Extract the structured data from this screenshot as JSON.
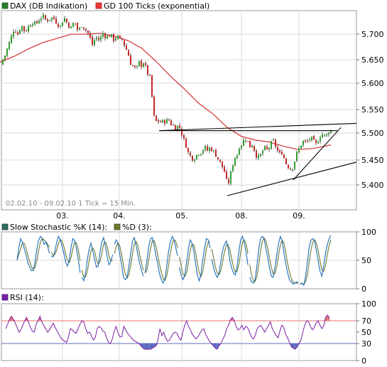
{
  "chart_data": [
    {
      "type": "candlestick",
      "legend": [
        {
          "label": "DAX (DB Indikation)",
          "color": "#2e7d32"
        },
        {
          "label": "GD 100 Ticks (exponential)",
          "color": "#d32f2f"
        }
      ],
      "info_text": "02.02.10 - 09.02.10   1 Tick = 15 Min.",
      "x_ticks": [
        "03.",
        "04.",
        "05.",
        "08.",
        "09."
      ],
      "y_ticks": [
        "5.700",
        "5.650",
        "5.600",
        "5.550",
        "5.500",
        "5.450",
        "5.400"
      ],
      "ylim": [
        5365,
        5745
      ],
      "close_path": [
        [
          0,
          5642
        ],
        [
          7,
          5660
        ],
        [
          14,
          5687
        ],
        [
          20,
          5712
        ],
        [
          25,
          5700
        ],
        [
          30,
          5718
        ],
        [
          35,
          5705
        ],
        [
          40,
          5714
        ],
        [
          45,
          5725
        ],
        [
          50,
          5718
        ],
        [
          55,
          5728
        ],
        [
          60,
          5735
        ],
        [
          65,
          5726
        ],
        [
          70,
          5730
        ],
        [
          75,
          5732
        ],
        [
          80,
          5722
        ],
        [
          85,
          5715
        ],
        [
          90,
          5733
        ],
        [
          95,
          5720
        ],
        [
          100,
          5712
        ],
        [
          105,
          5725
        ],
        [
          110,
          5705
        ],
        [
          115,
          5718
        ],
        [
          120,
          5710
        ],
        [
          125,
          5700
        ],
        [
          130,
          5680
        ],
        [
          135,
          5695
        ],
        [
          140,
          5688
        ],
        [
          145,
          5702
        ],
        [
          150,
          5694
        ],
        [
          155,
          5699
        ],
        [
          160,
          5690
        ],
        [
          165,
          5697
        ],
        [
          168,
          5688
        ],
        [
          172,
          5690
        ],
        [
          176,
          5677
        ],
        [
          180,
          5665
        ],
        [
          184,
          5645
        ],
        [
          188,
          5638
        ],
        [
          192,
          5632
        ],
        [
          196,
          5646
        ],
        [
          200,
          5640
        ],
        [
          203,
          5650
        ],
        [
          206,
          5630
        ],
        [
          208,
          5625
        ],
        [
          211,
          5617
        ],
        [
          214,
          5580
        ],
        [
          216,
          5552
        ],
        [
          218,
          5532
        ],
        [
          222,
          5535
        ],
        [
          227,
          5532
        ],
        [
          232,
          5534
        ],
        [
          238,
          5536
        ],
        [
          242,
          5527
        ],
        [
          247,
          5522
        ],
        [
          252,
          5526
        ],
        [
          256,
          5510
        ],
        [
          259,
          5498
        ],
        [
          262,
          5488
        ],
        [
          264,
          5476
        ],
        [
          268,
          5468
        ],
        [
          272,
          5462
        ],
        [
          276,
          5468
        ],
        [
          280,
          5474
        ],
        [
          284,
          5476
        ],
        [
          288,
          5485
        ],
        [
          292,
          5478
        ],
        [
          296,
          5484
        ],
        [
          300,
          5478
        ],
        [
          304,
          5470
        ],
        [
          308,
          5460
        ],
        [
          312,
          5450
        ],
        [
          316,
          5438
        ],
        [
          320,
          5413
        ],
        [
          323,
          5420
        ],
        [
          326,
          5442
        ],
        [
          329,
          5458
        ],
        [
          331,
          5466
        ],
        [
          334,
          5470
        ],
        [
          337,
          5486
        ],
        [
          340,
          5490
        ],
        [
          343,
          5497
        ],
        [
          346,
          5501
        ],
        [
          349,
          5494
        ],
        [
          352,
          5486
        ],
        [
          355,
          5490
        ],
        [
          358,
          5480
        ],
        [
          361,
          5469
        ],
        [
          365,
          5463
        ],
        [
          369,
          5476
        ],
        [
          373,
          5482
        ],
        [
          377,
          5478
        ],
        [
          381,
          5490
        ],
        [
          385,
          5495
        ],
        [
          389,
          5484
        ],
        [
          393,
          5470
        ],
        [
          397,
          5475
        ],
        [
          401,
          5460
        ],
        [
          404,
          5450
        ],
        [
          407,
          5447
        ],
        [
          410,
          5441
        ],
        [
          413,
          5450
        ],
        [
          416,
          5463
        ],
        [
          419,
          5477
        ],
        [
          422,
          5483
        ],
        [
          425,
          5494
        ],
        [
          428,
          5496
        ],
        [
          431,
          5492
        ],
        [
          434,
          5497
        ],
        [
          437,
          5502
        ],
        [
          440,
          5499
        ],
        [
          443,
          5491
        ],
        [
          446,
          5489
        ],
        [
          449,
          5503
        ],
        [
          452,
          5508
        ],
        [
          455,
          5510
        ],
        [
          458,
          5504
        ],
        [
          461,
          5510
        ],
        [
          464,
          5518
        ],
        [
          467,
          5512
        ]
      ],
      "ema_path": [
        [
          0,
          5647
        ],
        [
          20,
          5658
        ],
        [
          40,
          5672
        ],
        [
          60,
          5684
        ],
        [
          80,
          5692
        ],
        [
          100,
          5700
        ],
        [
          120,
          5700
        ],
        [
          140,
          5702
        ],
        [
          160,
          5697
        ],
        [
          180,
          5688
        ],
        [
          200,
          5673
        ],
        [
          220,
          5648
        ],
        [
          240,
          5620
        ],
        [
          260,
          5595
        ],
        [
          280,
          5568
        ],
        [
          300,
          5548
        ],
        [
          320,
          5522
        ],
        [
          340,
          5505
        ],
        [
          360,
          5498
        ],
        [
          380,
          5494
        ],
        [
          400,
          5486
        ],
        [
          420,
          5480
        ],
        [
          440,
          5482
        ],
        [
          460,
          5487
        ],
        [
          466,
          5489
        ]
      ],
      "trend_lines": [
        [
          [
            226,
            5516
          ],
          [
            475,
            5516
          ]
        ],
        [
          [
            224,
            5516
          ],
          [
            502,
            5530
          ]
        ],
        [
          [
            320,
            5392
          ],
          [
            502,
            5456
          ]
        ],
        [
          [
            413,
            5422
          ],
          [
            480,
            5522
          ]
        ]
      ]
    },
    {
      "type": "line",
      "legend": [
        {
          "label": "Slow Stochastic %K (14):",
          "color": "#1e88e5"
        },
        {
          "label": "%D (3):",
          "color": "#4e6b2a"
        }
      ],
      "y_ticks": [
        "100",
        "50",
        "0"
      ],
      "ylim": [
        0,
        100
      ],
      "k_values": [
        50,
        72,
        88,
        82,
        70,
        60,
        46,
        38,
        32,
        32,
        48,
        70,
        86,
        92,
        88,
        78,
        82,
        74,
        62,
        58,
        56,
        66,
        82,
        92,
        86,
        74,
        62,
        46,
        40,
        52,
        74,
        88,
        84,
        70,
        50,
        28,
        20,
        14,
        28,
        52,
        70,
        80,
        66,
        52,
        38,
        40,
        64,
        82,
        90,
        74,
        56,
        42,
        48,
        60,
        78,
        86,
        78,
        60,
        42,
        20,
        16,
        20,
        40,
        62,
        84,
        90,
        76,
        60,
        44,
        32,
        22,
        28,
        50,
        74,
        88,
        90,
        76,
        58,
        44,
        26,
        16,
        10,
        18,
        40,
        66,
        82,
        92,
        86,
        72,
        58,
        38,
        24,
        16,
        24,
        46,
        70,
        86,
        80,
        66,
        44,
        24,
        14,
        26,
        52,
        72,
        88,
        86,
        72,
        52,
        36,
        26,
        20,
        28,
        48,
        68,
        78,
        84,
        72,
        50,
        36,
        28,
        24,
        40,
        66,
        86,
        92,
        80,
        64,
        42,
        20,
        12,
        10,
        16,
        42,
        70,
        88,
        92,
        88,
        70,
        54,
        36,
        22,
        20,
        38,
        60,
        80,
        92,
        84,
        62,
        44,
        28,
        16,
        12,
        8,
        10,
        12,
        10,
        8,
        10,
        6,
        22,
        48,
        74,
        86,
        88,
        84,
        66,
        48,
        30,
        22,
        40,
        62,
        78,
        88,
        94
      ],
      "k_breaks": [
        19,
        36,
        54,
        71,
        90,
        108,
        129,
        157
      ]
    },
    {
      "type": "line",
      "legend": [
        {
          "label": "RSI (14):",
          "color": "#6a1b9a"
        }
      ],
      "y_ticks": [
        "100",
        "70",
        "50",
        "30",
        "0"
      ],
      "reference_lines": [
        70,
        30
      ],
      "reference_colors": [
        "#e57373",
        "#5c6bc0"
      ],
      "ylim": [
        0,
        100
      ],
      "values": [
        56,
        64,
        72,
        78,
        73,
        66,
        58,
        50,
        54,
        62,
        70,
        76,
        67,
        58,
        52,
        50,
        64,
        70,
        78,
        68,
        62,
        56,
        50,
        54,
        60,
        66,
        58,
        52,
        46,
        40,
        36,
        34,
        32,
        42,
        56,
        54,
        50,
        48,
        56,
        64,
        70,
        68,
        56,
        48,
        50,
        44,
        36,
        40,
        56,
        60,
        58,
        52,
        50,
        40,
        32,
        30,
        38,
        52,
        60,
        48,
        42,
        42,
        60,
        54,
        48,
        44,
        40,
        36,
        34,
        32,
        30,
        26,
        22,
        20,
        20,
        20,
        20,
        22,
        24,
        26,
        38,
        56,
        44,
        50,
        40,
        34,
        36,
        42,
        48,
        50,
        48,
        40,
        36,
        50,
        62,
        70,
        60,
        54,
        46,
        42,
        38,
        42,
        48,
        54,
        56,
        46,
        40,
        34,
        30,
        26,
        22,
        20,
        26,
        30,
        38,
        44,
        56,
        62,
        72,
        76,
        70,
        60,
        54,
        56,
        62,
        54,
        60,
        58,
        50,
        42,
        38,
        44,
        56,
        60,
        62,
        56,
        50,
        56,
        62,
        68,
        56,
        50,
        44,
        40,
        52,
        62,
        58,
        46,
        40,
        32,
        24,
        22,
        20,
        24,
        30,
        36,
        50,
        62,
        70,
        68,
        60,
        54,
        58,
        66,
        70,
        62,
        56,
        62,
        76,
        80,
        74
      ]
    }
  ]
}
